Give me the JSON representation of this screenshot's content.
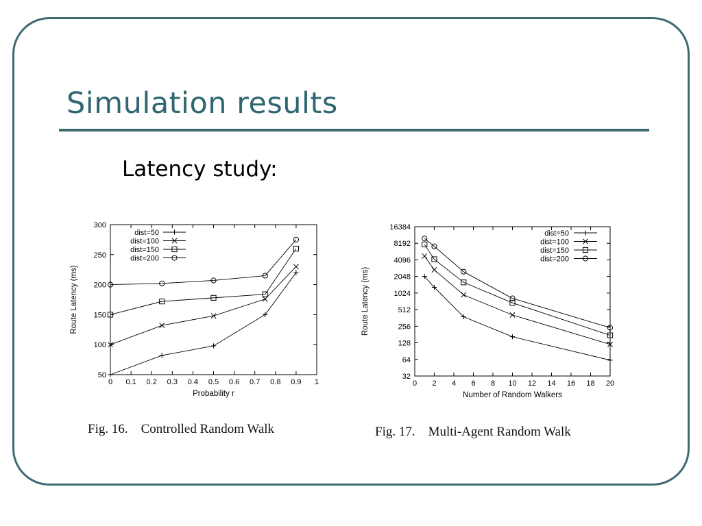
{
  "slide": {
    "title": "Simulation results",
    "subtitle": "Latency study:"
  },
  "chart_data": [
    {
      "type": "line",
      "caption": "Fig. 16.    Controlled Random Walk",
      "xlabel": "Probability r",
      "ylabel": "Route Latency (ms)",
      "xlim": [
        0,
        1
      ],
      "ylim": [
        50,
        300
      ],
      "xticks": [
        "0",
        "0.1",
        "0.2",
        "0.3",
        "0.4",
        "0.5",
        "0.6",
        "0.7",
        "0.8",
        "0.9",
        "1"
      ],
      "yticks": [
        "50",
        "100",
        "150",
        "200",
        "250",
        "300"
      ],
      "grid": false,
      "legend_position": "top-left",
      "x": [
        0,
        0.25,
        0.5,
        0.75,
        0.9
      ],
      "series": [
        {
          "name": "dist=50",
          "marker": "plus",
          "values": [
            50,
            82,
            98,
            150,
            220
          ]
        },
        {
          "name": "dist=100",
          "marker": "cross",
          "values": [
            100,
            132,
            148,
            176,
            230
          ]
        },
        {
          "name": "dist=150",
          "marker": "square",
          "values": [
            150,
            172,
            178,
            184,
            260
          ]
        },
        {
          "name": "dist=200",
          "marker": "circle",
          "values": [
            200,
            202,
            207,
            215,
            275
          ]
        }
      ]
    },
    {
      "type": "line",
      "caption": "Fig. 17.    Multi-Agent Random Walk",
      "xlabel": "Number of Random Walkers",
      "ylabel": "Route Latency (ms)",
      "xlim": [
        0,
        20
      ],
      "ylim": [
        32,
        16384
      ],
      "yscale": "log2",
      "xticks": [
        "0",
        "2",
        "4",
        "6",
        "8",
        "10",
        "12",
        "14",
        "16",
        "18",
        "20"
      ],
      "yticks": [
        "32",
        "64",
        "128",
        "256",
        "512",
        "1024",
        "2048",
        "4096",
        "8192",
        "16384"
      ],
      "grid": false,
      "legend_position": "top-right",
      "x": [
        1,
        2,
        5,
        10,
        20
      ],
      "series": [
        {
          "name": "dist=50",
          "marker": "plus",
          "values": [
            2048,
            1300,
            380,
            165,
            62
          ]
        },
        {
          "name": "dist=100",
          "marker": "cross",
          "values": [
            4800,
            2700,
            950,
            410,
            120
          ]
        },
        {
          "name": "dist=150",
          "marker": "square",
          "values": [
            7800,
            4200,
            1600,
            680,
            175
          ]
        },
        {
          "name": "dist=200",
          "marker": "circle",
          "values": [
            10000,
            7200,
            2500,
            820,
            240
          ]
        }
      ]
    }
  ]
}
